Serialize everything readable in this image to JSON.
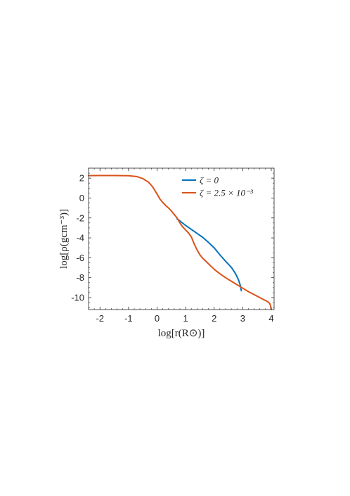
{
  "chart_data": {
    "type": "line",
    "xlabel": "log[r(R⊙)]",
    "ylabel": "log[ρ(gcm⁻³)]",
    "xlim": [
      -2.4,
      4.1
    ],
    "ylim": [
      -11.2,
      3.0
    ],
    "xticks": [
      -2,
      -1,
      0,
      1,
      2,
      3,
      4
    ],
    "xtick_labels": [
      "-2",
      "-1",
      "0",
      "1",
      "2",
      "3",
      "4"
    ],
    "yticks": [
      2,
      0,
      -2,
      -4,
      -6,
      -8,
      -10
    ],
    "ytick_labels": [
      "2",
      "0",
      "-2",
      "-4",
      "-6",
      "-8",
      "-10"
    ],
    "grid": false,
    "legend_position": "top-right",
    "series": [
      {
        "name": "ζ = 0",
        "color": "#0072BD",
        "x": [
          0.7,
          0.8,
          1.0,
          1.2,
          1.4,
          1.6,
          1.8,
          2.0,
          2.2,
          2.4,
          2.6,
          2.75,
          2.85,
          2.92,
          2.95
        ],
        "y": [
          -2.1,
          -2.3,
          -2.75,
          -3.15,
          -3.55,
          -3.95,
          -4.45,
          -5.0,
          -5.7,
          -6.35,
          -6.95,
          -7.6,
          -8.2,
          -8.8,
          -9.3
        ]
      },
      {
        "name": "ζ = 2.5 × 10⁻³",
        "color": "#D95319",
        "x": [
          -2.4,
          -2.0,
          -1.5,
          -1.0,
          -0.7,
          -0.5,
          -0.3,
          -0.15,
          0.0,
          0.1,
          0.2,
          0.3,
          0.4,
          0.5,
          0.6,
          0.7,
          0.8,
          0.9,
          1.0,
          1.1,
          1.2,
          1.3,
          1.4,
          1.5,
          1.6,
          1.8,
          2.0,
          2.2,
          2.4,
          2.6,
          2.8,
          3.0,
          3.2,
          3.4,
          3.6,
          3.8,
          3.9,
          3.95,
          3.98,
          4.0
        ],
        "y": [
          2.25,
          2.26,
          2.26,
          2.24,
          2.15,
          1.95,
          1.6,
          1.1,
          0.4,
          -0.1,
          -0.45,
          -0.75,
          -1.0,
          -1.3,
          -1.65,
          -2.0,
          -2.5,
          -2.9,
          -3.2,
          -3.5,
          -3.9,
          -4.6,
          -5.2,
          -5.7,
          -6.05,
          -6.6,
          -7.15,
          -7.6,
          -8.0,
          -8.35,
          -8.7,
          -9.05,
          -9.4,
          -9.7,
          -10.0,
          -10.3,
          -10.45,
          -10.6,
          -10.9,
          -11.2
        ]
      }
    ],
    "legend": [
      {
        "label": "ζ = 0",
        "color": "#0072BD"
      },
      {
        "label": "ζ = 2.5 × 10⁻³",
        "color": "#D95319"
      }
    ]
  }
}
